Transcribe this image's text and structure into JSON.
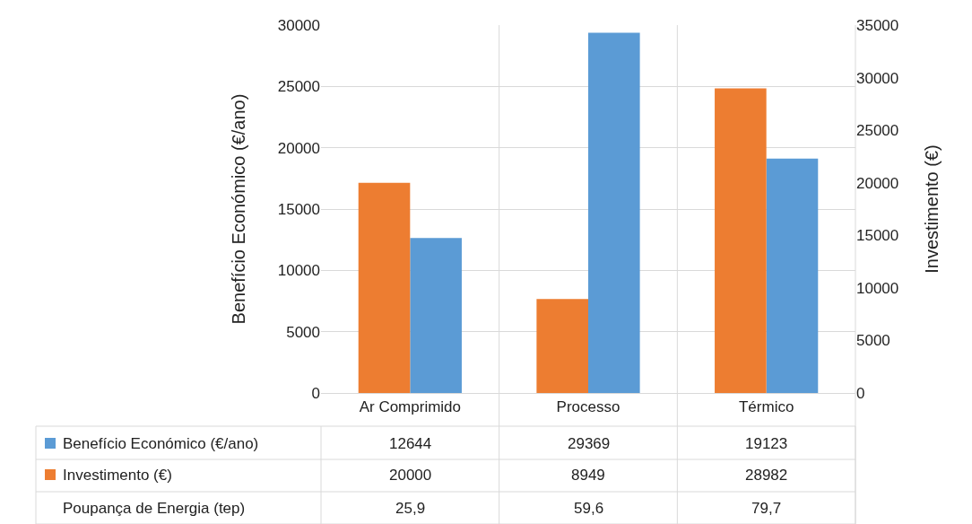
{
  "chart_data": {
    "type": "bar",
    "categories": [
      "Ar Comprimido",
      "Processo",
      "Térmico"
    ],
    "ylabel": "Benefício Económico (€/ano)",
    "y2label": "Investimento (€)",
    "series": [
      {
        "name": "Benefício Económico (€/ano)",
        "color": "#5b9bd5",
        "values": [
          12644,
          29369,
          19123
        ]
      },
      {
        "name": "Investimento (€)",
        "color": "#ed7d31",
        "values": [
          20000,
          8949,
          28982
        ],
        "axis": "y2"
      }
    ],
    "ylim": [
      0,
      30000
    ],
    "yticks": [
      0,
      5000,
      10000,
      15000,
      20000,
      25000,
      30000
    ],
    "y2lim": [
      0,
      35000
    ],
    "y2ticks": [
      0,
      5000,
      10000,
      15000,
      20000,
      25000,
      30000,
      35000
    ],
    "grid": "y",
    "legend": "bottom",
    "data_labels": true,
    "annotations": [
      "Poupança de Energia (tep)",
      "25,9",
      "59,6",
      "79,7"
    ]
  }
}
